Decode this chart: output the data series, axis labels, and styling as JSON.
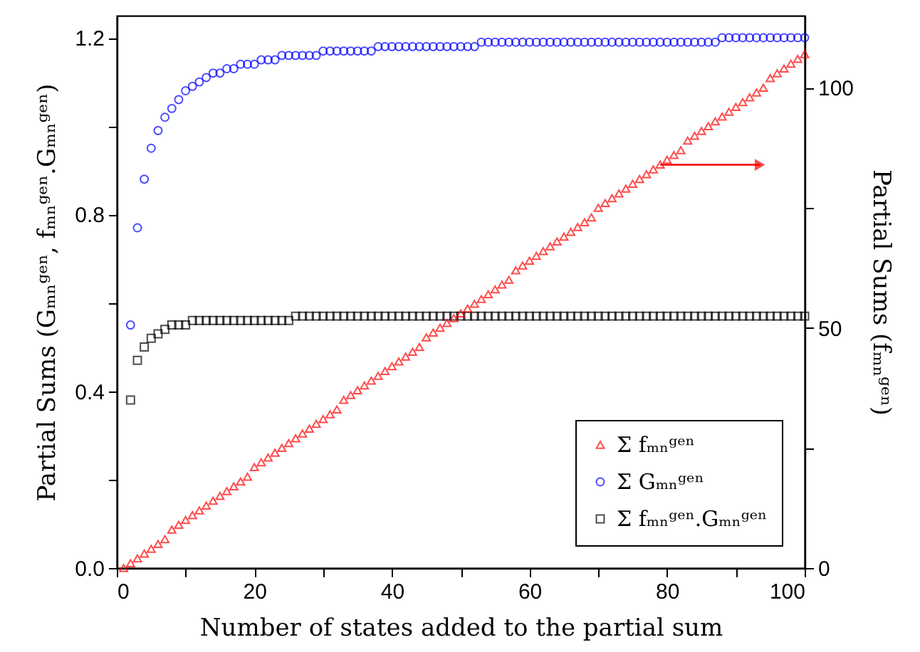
{
  "chart_data": {
    "type": "scatter",
    "xlabel": "Number of states added to the partial sum",
    "ylabel": "Partial Sums (Gₘₙᵍᵉⁿ, fₘₙᵍᵉⁿ.Gₘₙᵍᵉⁿ)",
    "y2label": "Partial Sums (fₘₙᵍᵉⁿ)",
    "xlim": [
      0,
      100
    ],
    "xticks": [
      0,
      {
        "value": 10,
        "label": null
      },
      20,
      {
        "value": 30,
        "label": null
      },
      40,
      {
        "value": 50,
        "label": null
      },
      60,
      {
        "value": 70,
        "label": null
      },
      80,
      {
        "value": 90,
        "label": null
      },
      100
    ],
    "ylim": [
      0,
      1.25
    ],
    "yticks": [
      {
        "value": 0,
        "label": "0.0"
      },
      {
        "value": 0.2,
        "label": null
      },
      0.4,
      {
        "value": 0.6,
        "label": null
      },
      0.8,
      {
        "value": 1.0,
        "label": null
      },
      1.2
    ],
    "y2lim": [
      0,
      115
    ],
    "y2ticks": [
      0,
      {
        "value": 25,
        "label": null
      },
      50,
      {
        "value": 75,
        "label": null
      },
      100
    ],
    "grid": false,
    "legend": "bottom right",
    "x": [
      1,
      2,
      3,
      4,
      5,
      6,
      7,
      8,
      9,
      10,
      11,
      12,
      13,
      14,
      15,
      16,
      17,
      18,
      19,
      20,
      21,
      22,
      23,
      24,
      25,
      26,
      27,
      28,
      29,
      30,
      31,
      32,
      33,
      34,
      35,
      36,
      37,
      38,
      39,
      40,
      41,
      42,
      43,
      44,
      45,
      46,
      47,
      48,
      49,
      50,
      51,
      52,
      53,
      54,
      55,
      56,
      57,
      58,
      59,
      60,
      61,
      62,
      63,
      64,
      65,
      66,
      67,
      68,
      69,
      70,
      71,
      72,
      73,
      74,
      75,
      76,
      77,
      78,
      79,
      80,
      81,
      82,
      83,
      84,
      85,
      86,
      87,
      88,
      89,
      90,
      91,
      92,
      93,
      94,
      95,
      96,
      97,
      98,
      99,
      100
    ],
    "series": [
      {
        "name": "Σ fₘₙᵍᵉⁿ",
        "color": "#ff0000",
        "marker": "triangle",
        "axis": "y2",
        "values": [
          0,
          1,
          2,
          3,
          4,
          5,
          6,
          8,
          9,
          10,
          11,
          12,
          13,
          14,
          15,
          16,
          17,
          18,
          19,
          21,
          22,
          23,
          24,
          25,
          26,
          27,
          28,
          29,
          30,
          31,
          32,
          33,
          35,
          36,
          37,
          38,
          39,
          40,
          41,
          42,
          43,
          44,
          45,
          46,
          48,
          49,
          50,
          51,
          52,
          53,
          54,
          55,
          56,
          57,
          58,
          59,
          60,
          62,
          63,
          64,
          65,
          66,
          67,
          68,
          69,
          70,
          71,
          72,
          73,
          75,
          76,
          77,
          78,
          79,
          80,
          81,
          82,
          83,
          84,
          85,
          86,
          87,
          89,
          90,
          91,
          92,
          93,
          94,
          95,
          96,
          97,
          98,
          99,
          100,
          102,
          103,
          104,
          105,
          106,
          107
        ]
      },
      {
        "name": "Σ Gₘₙᵍᵉⁿ",
        "color": "#0000ff",
        "marker": "circle",
        "x": [
          2,
          3,
          4,
          5,
          6,
          7,
          8,
          9,
          10,
          11,
          12,
          13,
          14,
          15,
          16,
          17,
          18,
          19,
          20,
          21,
          22,
          23,
          24,
          25,
          26,
          27,
          28,
          29,
          30,
          31,
          32,
          33,
          34,
          35,
          36,
          37,
          38,
          39,
          40,
          41,
          42,
          43,
          44,
          45,
          46,
          47,
          48,
          49,
          50,
          51,
          52,
          53,
          54,
          55,
          56,
          57,
          58,
          59,
          60,
          61,
          62,
          63,
          64,
          65,
          66,
          67,
          68,
          69,
          70,
          71,
          72,
          73,
          74,
          75,
          76,
          77,
          78,
          79,
          80,
          81,
          82,
          83,
          84,
          85,
          86,
          87,
          88,
          89,
          90,
          91,
          92,
          93,
          94,
          95,
          96,
          97,
          98,
          99,
          100
        ],
        "values": [
          0.55,
          0.77,
          0.88,
          0.95,
          0.99,
          1.02,
          1.04,
          1.06,
          1.08,
          1.09,
          1.1,
          1.11,
          1.12,
          1.12,
          1.13,
          1.13,
          1.14,
          1.14,
          1.14,
          1.15,
          1.15,
          1.15,
          1.16,
          1.16,
          1.16,
          1.16,
          1.16,
          1.16,
          1.17,
          1.17,
          1.17,
          1.17,
          1.17,
          1.17,
          1.17,
          1.17,
          1.18,
          1.18,
          1.18,
          1.18,
          1.18,
          1.18,
          1.18,
          1.18,
          1.18,
          1.18,
          1.18,
          1.18,
          1.18,
          1.18,
          1.18,
          1.19,
          1.19,
          1.19,
          1.19,
          1.19,
          1.19,
          1.19,
          1.19,
          1.19,
          1.19,
          1.19,
          1.19,
          1.19,
          1.19,
          1.19,
          1.19,
          1.19,
          1.19,
          1.19,
          1.19,
          1.19,
          1.19,
          1.19,
          1.19,
          1.19,
          1.19,
          1.19,
          1.19,
          1.19,
          1.19,
          1.19,
          1.19,
          1.19,
          1.19,
          1.19,
          1.2,
          1.2,
          1.2,
          1.2,
          1.2,
          1.2,
          1.2,
          1.2,
          1.2,
          1.2,
          1.2,
          1.2,
          1.2
        ]
      },
      {
        "name": "Σ fₘₙᵍᵉⁿ.Gₘₙᵍᵉⁿ",
        "color": "#000000",
        "marker": "square",
        "x": [
          2,
          3,
          4,
          5,
          6,
          7,
          8,
          9,
          10,
          11,
          12,
          13,
          14,
          15,
          16,
          17,
          18,
          19,
          20,
          21,
          22,
          23,
          24,
          25,
          26,
          27,
          28,
          29,
          30,
          31,
          32,
          33,
          34,
          35,
          36,
          37,
          38,
          39,
          40,
          41,
          42,
          43,
          44,
          45,
          46,
          47,
          48,
          49,
          50,
          51,
          52,
          53,
          54,
          55,
          56,
          57,
          58,
          59,
          60,
          61,
          62,
          63,
          64,
          65,
          66,
          67,
          68,
          69,
          70,
          71,
          72,
          73,
          74,
          75,
          76,
          77,
          78,
          79,
          80,
          81,
          82,
          83,
          84,
          85,
          86,
          87,
          88,
          89,
          90,
          91,
          92,
          93,
          94,
          95,
          96,
          97,
          98,
          99,
          100
        ],
        "values": [
          0.38,
          0.47,
          0.5,
          0.52,
          0.53,
          0.54,
          0.55,
          0.55,
          0.55,
          0.56,
          0.56,
          0.56,
          0.56,
          0.56,
          0.56,
          0.56,
          0.56,
          0.56,
          0.56,
          0.56,
          0.56,
          0.56,
          0.56,
          0.56,
          0.57,
          0.57,
          0.57,
          0.57,
          0.57,
          0.57,
          0.57,
          0.57,
          0.57,
          0.57,
          0.57,
          0.57,
          0.57,
          0.57,
          0.57,
          0.57,
          0.57,
          0.57,
          0.57,
          0.57,
          0.57,
          0.57,
          0.57,
          0.57,
          0.57,
          0.57,
          0.57,
          0.57,
          0.57,
          0.57,
          0.57,
          0.57,
          0.57,
          0.57,
          0.57,
          0.57,
          0.57,
          0.57,
          0.57,
          0.57,
          0.57,
          0.57,
          0.57,
          0.57,
          0.57,
          0.57,
          0.57,
          0.57,
          0.57,
          0.57,
          0.57,
          0.57,
          0.57,
          0.57,
          0.57,
          0.57,
          0.57,
          0.57,
          0.57,
          0.57,
          0.57,
          0.57,
          0.57,
          0.57,
          0.57,
          0.57,
          0.57,
          0.57,
          0.57,
          0.57,
          0.57,
          0.57,
          0.57,
          0.57,
          0.57
        ]
      }
    ]
  }
}
